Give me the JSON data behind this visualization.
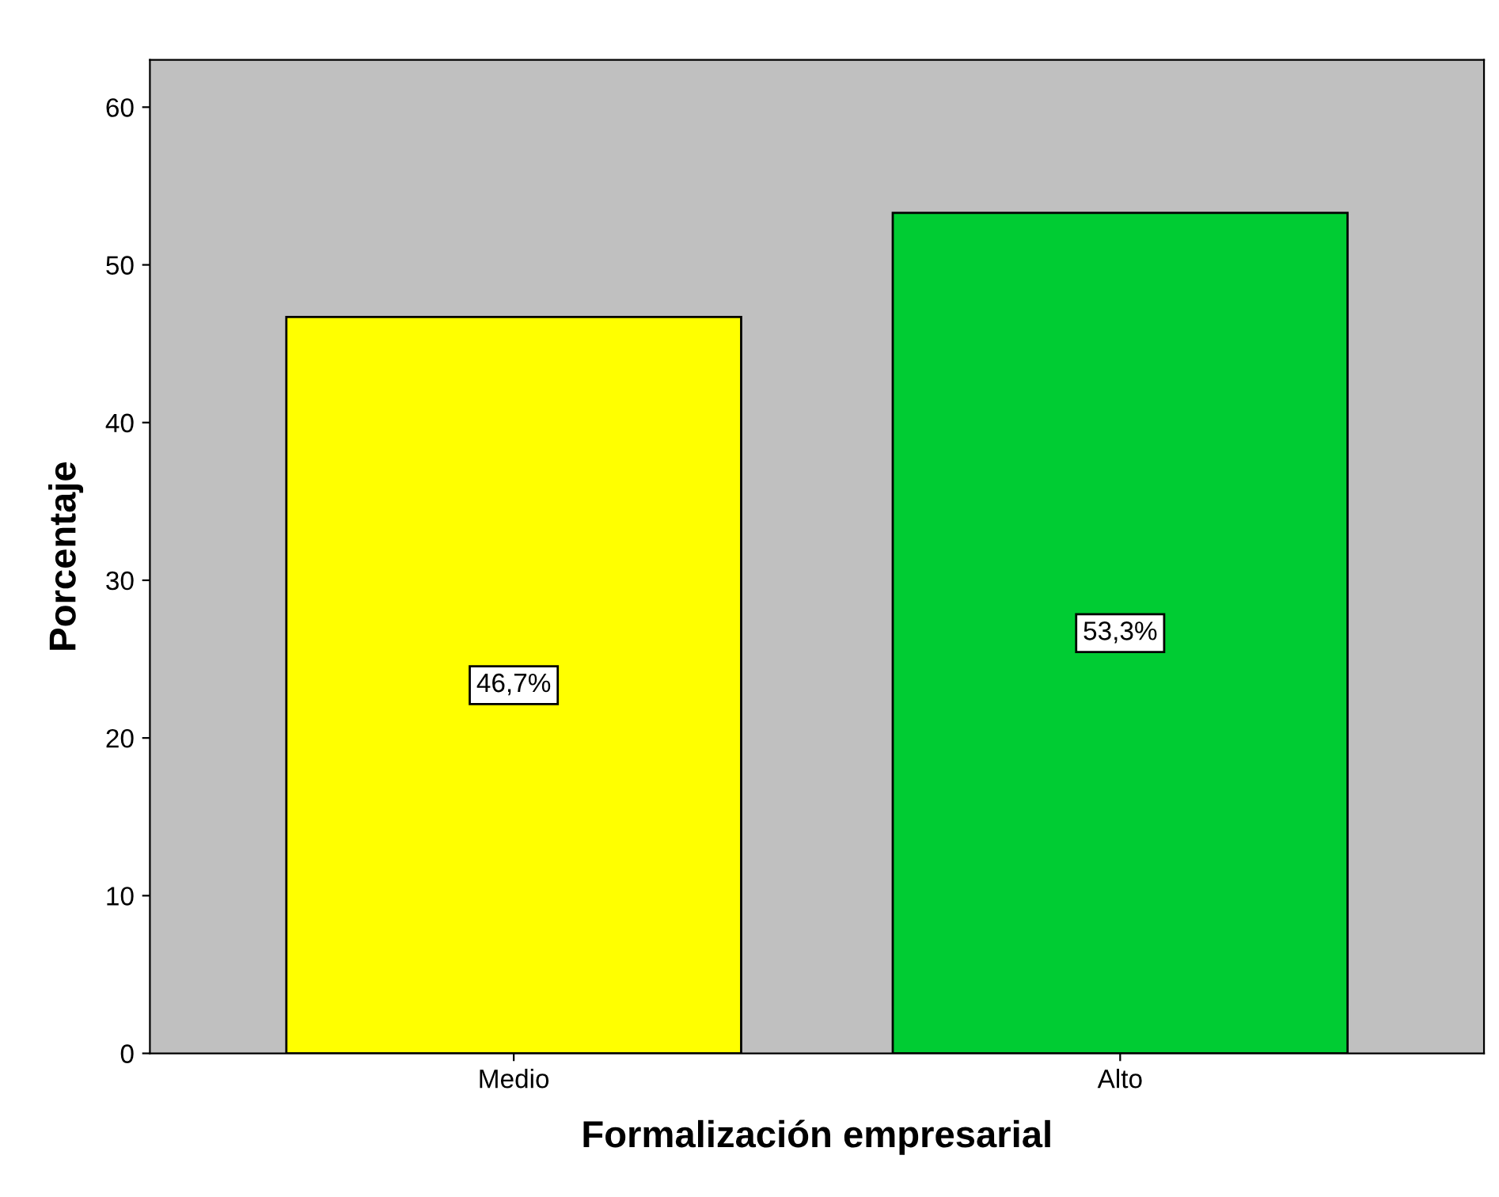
{
  "chart_data": {
    "type": "bar",
    "xlabel": "Formalización empresarial",
    "ylabel": "Porcentaje",
    "categories": [
      "Medio",
      "Alto"
    ],
    "values": [
      46.7,
      53.3
    ],
    "colors": [
      "#ffff00",
      "#00cc33"
    ],
    "value_labels": [
      "46,7%",
      "53,3%"
    ],
    "ylim": [
      0,
      63
    ],
    "yticks": [
      0,
      10,
      20,
      30,
      40,
      50,
      60
    ],
    "grid": false
  }
}
